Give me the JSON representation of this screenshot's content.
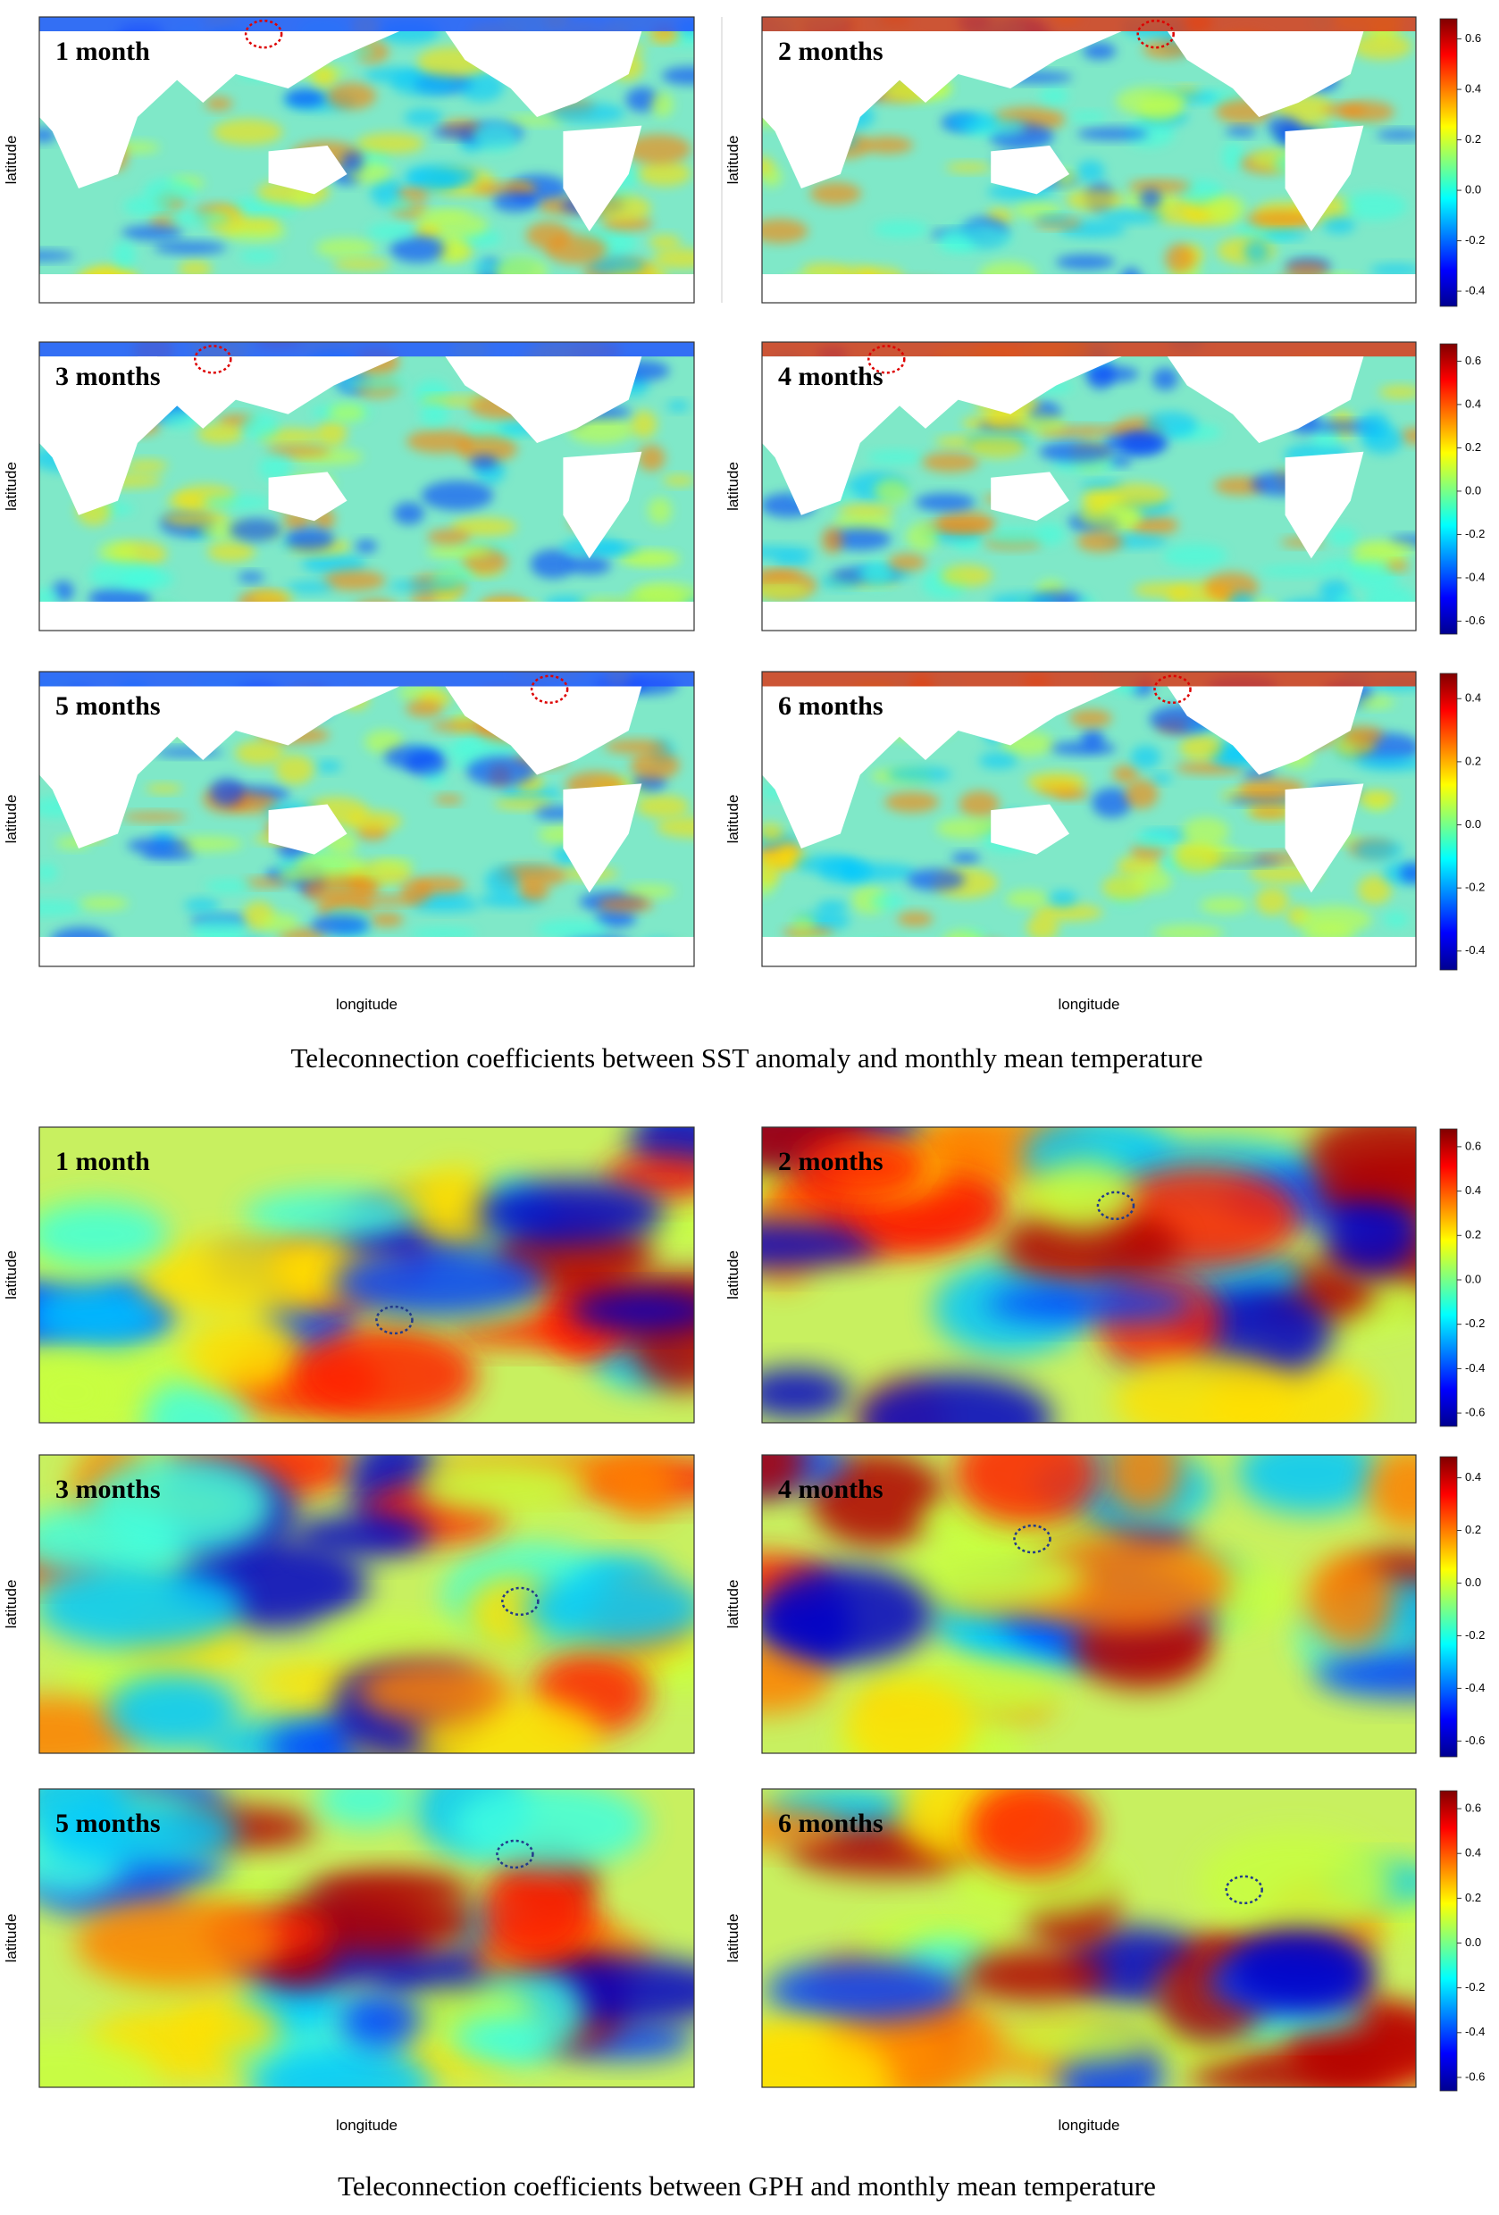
{
  "figures": [
    {
      "caption": "Teleconnection coefficients between SST anomaly and monthly mean temperature",
      "x_label": "longitude",
      "y_label": "latitude",
      "panels": [
        {
          "label": "1 month"
        },
        {
          "label": "2 months"
        },
        {
          "label": "3 months"
        },
        {
          "label": "4 months"
        },
        {
          "label": "5 months"
        },
        {
          "label": "6 months"
        }
      ],
      "colorbars": [
        {
          "ticks": [
            "0.6",
            "0.4",
            "0.2",
            "0.0",
            "-0.2",
            "-0.4"
          ]
        },
        {
          "ticks": [
            "0.6",
            "0.4",
            "0.2",
            "0.0",
            "-0.2",
            "-0.4",
            "-0.6"
          ]
        },
        {
          "ticks": [
            "0.4",
            "0.2",
            "0.0",
            "-0.2",
            "-0.4"
          ]
        }
      ]
    },
    {
      "caption": "Teleconnection coefficients between GPH and monthly mean temperature",
      "x_label": "longitude",
      "y_label": "latitude",
      "panels": [
        {
          "label": "1 month"
        },
        {
          "label": "2 months"
        },
        {
          "label": "3 months"
        },
        {
          "label": "4 months"
        },
        {
          "label": "5 months"
        },
        {
          "label": "6 months"
        }
      ],
      "colorbars": [
        {
          "ticks": [
            "0.6",
            "0.4",
            "0.2",
            "0.0",
            "-0.2",
            "-0.4",
            "-0.6"
          ]
        },
        {
          "ticks": [
            "0.4",
            "0.2",
            "0.0",
            "-0.2",
            "-0.4",
            "-0.6"
          ]
        },
        {
          "ticks": [
            "0.6",
            "0.4",
            "0.2",
            "0.0",
            "-0.2",
            "-0.4",
            "-0.6"
          ]
        }
      ]
    }
  ]
}
